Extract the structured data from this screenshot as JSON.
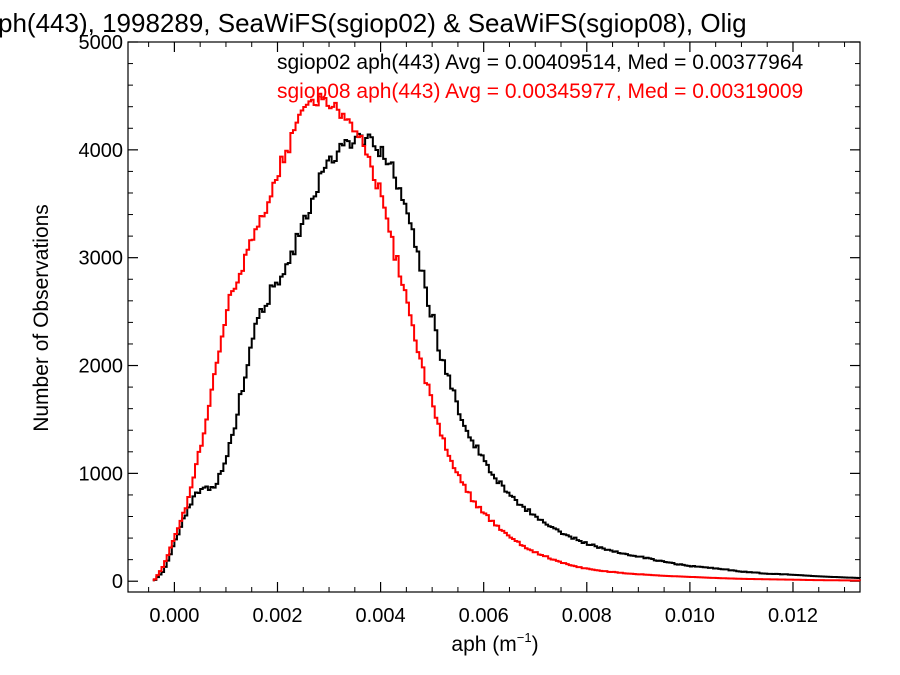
{
  "chart_data": {
    "type": "histogram-step",
    "title": "ph(443), 1998289, SeaWiFS(sgiop02) & SeaWiFS(sgiop08), Olig",
    "xlabel_main": "aph (m",
    "xlabel_sup": "−1",
    "xlabel_close": ")",
    "ylabel": "Number of Observations",
    "xlim": [
      -0.0009,
      0.0133
    ],
    "ylim": [
      -100,
      5000
    ],
    "xticks": [
      0.0,
      0.002,
      0.004,
      0.006,
      0.008,
      0.01,
      0.012
    ],
    "xtick_labels": [
      "0.000",
      "0.002",
      "0.004",
      "0.006",
      "0.008",
      "0.010",
      "0.012"
    ],
    "yticks": [
      0,
      1000,
      2000,
      3000,
      4000,
      5000
    ],
    "ytick_labels": [
      "0",
      "1000",
      "2000",
      "3000",
      "4000",
      "5000"
    ],
    "series": [
      {
        "name": "sgiop02",
        "color": "#000000",
        "annotation": "sgiop02 aph(443) Avg = 0.00409514, Med = 0.00377964",
        "x": [
          -0.0004,
          -0.0002,
          0.0,
          0.0002,
          0.0004,
          0.0006,
          0.0008,
          0.001,
          0.0012,
          0.0014,
          0.0016,
          0.0018,
          0.002,
          0.0022,
          0.0024,
          0.0026,
          0.0028,
          0.003,
          0.0032,
          0.0034,
          0.0036,
          0.0038,
          0.004,
          0.0042,
          0.0044,
          0.0046,
          0.0048,
          0.005,
          0.0052,
          0.0054,
          0.0056,
          0.0058,
          0.006,
          0.0062,
          0.0064,
          0.0066,
          0.0068,
          0.007,
          0.0072,
          0.0074,
          0.0076,
          0.0078,
          0.008,
          0.0085,
          0.009,
          0.0095,
          0.01,
          0.0105,
          0.011,
          0.0115,
          0.012,
          0.0125,
          0.013,
          0.0133
        ],
        "y": [
          0,
          100,
          350,
          600,
          800,
          850,
          900,
          1100,
          1500,
          2000,
          2400,
          2600,
          2800,
          2900,
          3200,
          3400,
          3700,
          3900,
          4000,
          4050,
          4100,
          4080,
          4000,
          3850,
          3600,
          3300,
          2900,
          2450,
          2050,
          1750,
          1500,
          1300,
          1120,
          980,
          860,
          760,
          680,
          600,
          540,
          480,
          430,
          390,
          350,
          280,
          230,
          180,
          140,
          120,
          90,
          70,
          60,
          45,
          35,
          30
        ]
      },
      {
        "name": "sgiop08",
        "color": "#ff0000",
        "annotation": "sgiop08 aph(443) Avg = 0.00345977, Med = 0.00319009",
        "x": [
          -0.0004,
          -0.0002,
          0.0,
          0.0002,
          0.0004,
          0.0006,
          0.0008,
          0.001,
          0.0012,
          0.0014,
          0.0016,
          0.0018,
          0.002,
          0.0022,
          0.0024,
          0.0026,
          0.0028,
          0.003,
          0.0032,
          0.0034,
          0.0036,
          0.0038,
          0.004,
          0.0042,
          0.0044,
          0.0046,
          0.0048,
          0.005,
          0.0052,
          0.0054,
          0.0056,
          0.0058,
          0.006,
          0.0062,
          0.0064,
          0.0066,
          0.0068,
          0.007,
          0.0072,
          0.0074,
          0.0076,
          0.0078,
          0.008,
          0.0085,
          0.009,
          0.0095,
          0.01,
          0.0105,
          0.011,
          0.0115,
          0.012,
          0.0125,
          0.013,
          0.0133
        ],
        "y": [
          0,
          150,
          400,
          650,
          1000,
          1450,
          2000,
          2500,
          2750,
          3000,
          3250,
          3500,
          3800,
          4000,
          4250,
          4400,
          4480,
          4420,
          4350,
          4300,
          4100,
          3900,
          3600,
          3200,
          2800,
          2400,
          2000,
          1650,
          1350,
          1100,
          900,
          740,
          630,
          540,
          450,
          380,
          320,
          270,
          230,
          190,
          160,
          135,
          115,
          85,
          65,
          50,
          40,
          30,
          22,
          18,
          14,
          10,
          8,
          6
        ]
      }
    ]
  }
}
